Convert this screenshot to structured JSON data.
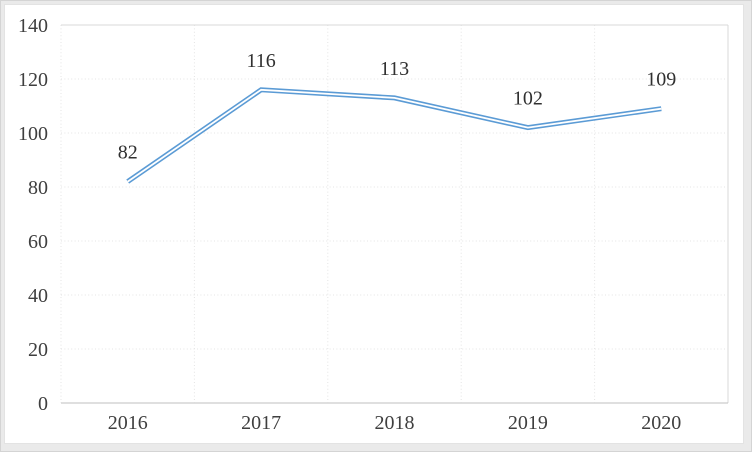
{
  "frame": {
    "outer_bg": "#eaeaea",
    "canvas_bg": "#ffffff",
    "canvas_border": "#e3e3e3"
  },
  "chart_data": {
    "type": "line",
    "title": "",
    "xlabel": "",
    "ylabel": "",
    "categories": [
      "2016",
      "2017",
      "2018",
      "2019",
      "2020"
    ],
    "series": [
      {
        "name": "",
        "values": [
          82,
          116,
          113,
          102,
          109
        ],
        "data_labels": [
          "82",
          "116",
          "113",
          "102",
          "109"
        ]
      }
    ],
    "ylim": [
      0,
      140
    ],
    "yticks": [
      0,
      20,
      40,
      60,
      80,
      100,
      120,
      140
    ],
    "grid": true,
    "legend_position": "none",
    "line_color": "#5B9BD5",
    "line_style": "double",
    "line_gap_color": "#ffffff",
    "gridline_color": "#e4e4e4",
    "plot_border_color": "#d9d9d9",
    "axis_line_color": "#bfbfbf",
    "tick_label_color": "#3f3f3f",
    "data_label_color": "#303030"
  }
}
